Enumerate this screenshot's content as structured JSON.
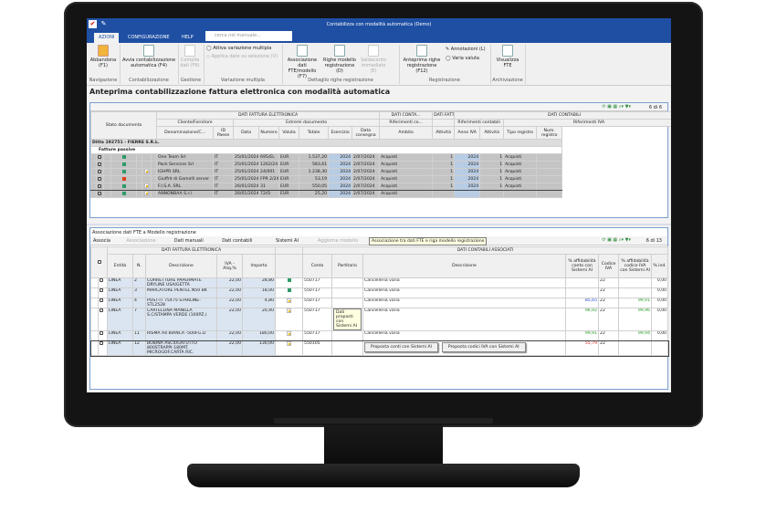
{
  "window": {
    "title": "Contabilizza con modalità automatica  (Demo)"
  },
  "tabs": [
    {
      "label": "AZIONI"
    },
    {
      "label": "CONFIGURAZIONE"
    },
    {
      "label": "HELP"
    }
  ],
  "search": {
    "placeholder": "cerca nel manuale..."
  },
  "ribbon": {
    "abbandona": "Abbandona (F1)",
    "avvia": "Avvia contabilizzazione automatica (F4)",
    "compila": "Compila dati (F9)",
    "attiva": "Attiva variazione multipla",
    "applica": "Applica dato su selezione (V)",
    "associazione": "Associazione dati FTE/modello (F7)",
    "righe": "Righe modello registrazione (D)",
    "saldaconto": "Saldaconto immediato (E)",
    "anteprima": "Anteprima righe registrazione (F12)",
    "annotazioni": "Annotazioni (L)",
    "varia": "Varia valuta",
    "visualizza": "Visualizza FTE",
    "groups": [
      "Navigazione",
      "Contabilizzazione",
      "Gestione",
      "Variazione multipla",
      "Dettaglio righe registrazione",
      "Registrazione",
      "Archiviazione"
    ]
  },
  "page_title": "Anteprima contabilizzazione fattura elettronica con modalità automatica",
  "top_grid": {
    "counter": "6 di 6",
    "bands": [
      "DATI FATTURA ELETTRONICA",
      "DATI CONTA...",
      "DATI FATTU...",
      "DATI CONTABILI"
    ],
    "subbands": [
      "Cliente/Fornitore",
      "Estremi documento",
      "Riferimenti co...",
      "Riferimenti contabili",
      "Riferimenti IVA"
    ],
    "stato": "Stato documento",
    "columns": [
      "Denominazione/C...",
      "ID Paese",
      "Data",
      "Numero",
      "Valuta",
      "Totale",
      "Esercizio",
      "Data consegna",
      "Ambito",
      "Attività",
      "Anno IVA",
      "Attività",
      "Tipo registro",
      "Num. registro"
    ],
    "ditta": "Ditta 192751 - FIERRE S.R.L.",
    "section": "Fatture passive",
    "rows": [
      {
        "status": "green",
        "note": false,
        "cells": [
          "One Team Srl",
          "IT",
          "25/01/2024",
          "695/EL",
          "EUR",
          "1.537,20",
          "2024",
          "2/07/2024",
          "Acquisti",
          "1",
          "2024",
          "1",
          "Acquisti",
          ""
        ]
      },
      {
        "status": "green",
        "note": false,
        "cells": [
          "Pack Services Srl",
          "IT",
          "25/01/2024",
          "1262/24",
          "EUR",
          "583,61",
          "2024",
          "2/07/2024",
          "Acquisti",
          "1",
          "2024",
          "1",
          "Acquisti",
          ""
        ]
      },
      {
        "status": "green",
        "note": true,
        "cells": [
          "IGHPR SRL",
          "IT",
          "25/01/2024",
          "24/001",
          "EUR",
          "1.238,30",
          "2024",
          "2/07/2024",
          "Acquisti",
          "1",
          "2024",
          "1",
          "Acquisti",
          ""
        ]
      },
      {
        "status": "red",
        "note": false,
        "cells": [
          "Giuffrè di Gamelli server",
          "IT",
          "25/01/2024",
          "FPR 2/24",
          "EUR",
          "53,19",
          "2024",
          "2/07/2024",
          "Acquisti",
          "1",
          "2024",
          "1",
          "Acquisti",
          ""
        ]
      },
      {
        "status": "green",
        "note": true,
        "cells": [
          "F.I.S.A. SRL",
          "IT",
          "26/01/2024",
          "31",
          "EUR",
          "550,05",
          "2024",
          "2/07/2024",
          "Acquisti",
          "1",
          "2024",
          "1",
          "Acquisti",
          ""
        ]
      },
      {
        "status": "green",
        "note": true,
        "cells": [
          "ANNONBAA S.r.l.",
          "IT",
          "26/01/2024",
          "72/O",
          "EUR",
          "25,20",
          "2024",
          "2/07/2024",
          "Acquisti",
          "",
          "",
          "",
          "",
          ""
        ]
      }
    ]
  },
  "bottom_grid": {
    "title": "Associazione dati FTE a Modello registrazione",
    "toolbar": [
      "Associa",
      "Associazione",
      "Dati manuali",
      "Dati contabili",
      "Sistemi AI",
      "Aggiorna modello"
    ],
    "counter": "6 di 13",
    "bands": [
      "DATI FATTURA ELETTRONICA",
      "DATI CONTABILI ASSOCIATI"
    ],
    "columns": [
      "Entità",
      "N.",
      "Descrizione",
      "IVA - Aliq.%",
      "Importo",
      "",
      "Conto",
      "Partitario",
      "Descrizione",
      "% affidabilità conto con Sistemi AI",
      "Codice IVA",
      "% affidabilità codice IVA con Sistemi AI",
      "% ind."
    ],
    "tooltip_header": "Associazione tra dati FTE e riga modello registrazione",
    "tooltip_row": "Dati proposti con Sistemi AI",
    "popup_conti": "Proposta conti con Sistemi AI",
    "popup_iva": "Proposta codici IVA con Sistemi AI",
    "rows": [
      {
        "icon": "green",
        "cells": [
          "LINEA",
          "2",
          "CORRETTORE PAPERMATE DRYLINE USA/GETTA",
          "22,00",
          "28,80",
          "",
          "550717",
          "",
          "Cancelleria varia",
          "",
          "22",
          "",
          "0,00"
        ]
      },
      {
        "icon": "green",
        "cells": [
          "LINEA",
          "3",
          "MARCATORE PENTEL N50 BK",
          "22,00",
          "18,00",
          "",
          "550717",
          "",
          "Cancelleria varia",
          "",
          "22",
          "",
          "0,00"
        ]
      },
      {
        "icon": "note",
        "cells": [
          "LINEA",
          "4",
          "POST-IT 75X75 STARLINE-STL2528",
          "22,00",
          "4,80",
          "",
          "550717",
          "",
          "Cancelleria varia",
          "85,65",
          "22",
          "99,91",
          "0,00"
        ],
        "affcolor": "#1a3fd6"
      },
      {
        "icon": "note",
        "cells": [
          "LINEA",
          "7",
          "CARTELLINA MANILLA S.C/STAMPA VERDE (100PZ.)",
          "22,00",
          "20,40",
          "",
          "550717",
          "",
          "Cancelleria varia",
          "96,92",
          "22",
          "99,96",
          "0,00"
        ],
        "affcolor": "#1e9b1e"
      },
      {
        "icon": "note",
        "cells": [
          "LINEA",
          "11",
          "RISMA A4 BIANCA -500FG.LI",
          "22,00",
          "180,00",
          "",
          "550717",
          "",
          "Cancelleria varia",
          "99,91",
          "22",
          "99,94",
          "0,00"
        ],
        "affcolor": "#1e9b1e"
      },
      {
        "icon": "note",
        "cells": [
          "LINEA",
          "12",
          "BOBINA ASCIUGATUTTO 800STRAPPI-180MT. MICROGOF.CARTA RIC.",
          "22,00",
          "130,00",
          "",
          "550105",
          "",
          "",
          "55,79",
          "22",
          "",
          ""
        ],
        "affcolor": "#e02020"
      }
    ]
  },
  "colors": {
    "brand": "#1e4fa3",
    "ok": "#2e9b6a",
    "error": "#e0401a",
    "ai_iva": "#1e9b1e"
  }
}
